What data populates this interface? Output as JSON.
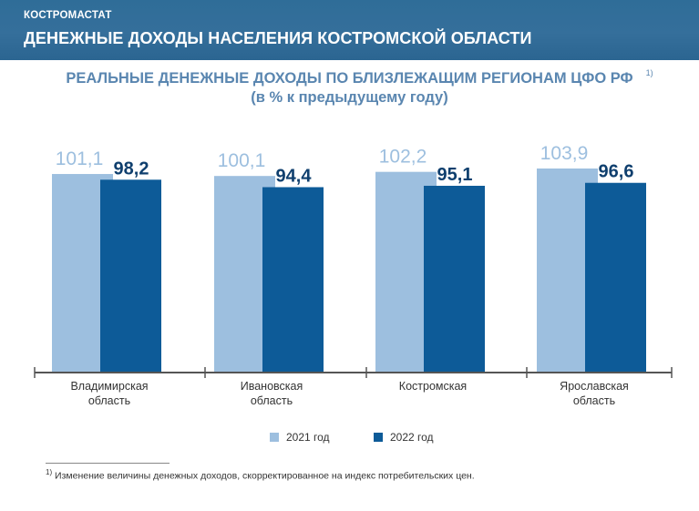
{
  "header": {
    "org": "КОСТРОМАСТАТ",
    "title": "ДЕНЕЖНЫЕ ДОХОДЫ НАСЕЛЕНИЯ КОСТРОМСКОЙ ОБЛАСТИ"
  },
  "colors": {
    "header_bg": "#2f6d98",
    "series_2021": "#9dbfdf",
    "series_2022": "#0d5b98",
    "label_2021": "#9dbfdf",
    "label_2022": "#0f3f6e",
    "subtitle": "#5a86b0"
  },
  "footnote": {
    "marker": "1)",
    "text": "Изменение величины денежных доходов, скорректированное на индекс потребительских цен."
  },
  "chart_data": {
    "type": "bar",
    "title": "РЕАЛЬНЫЕ ДЕНЕЖНЫЕ ДОХОДЫ ПО БЛИЗЛЕЖАЩИМ РЕГИОНАМ ЦФО РФ",
    "title_footnote_marker": "1)",
    "subtitle": "(в % к предыдущему году)",
    "categories": [
      [
        "Владимирская",
        "область"
      ],
      [
        "Ивановская",
        "область"
      ],
      [
        "Костромская"
      ],
      [
        "Ярославская",
        "область"
      ]
    ],
    "series": [
      {
        "name": "2021 год",
        "values": [
          101.1,
          100.1,
          102.2,
          103.9
        ],
        "labels": [
          "101,1",
          "100,1",
          "102,2",
          "103,9"
        ]
      },
      {
        "name": "2022 год",
        "values": [
          98.2,
          94.4,
          95.1,
          96.6
        ],
        "labels": [
          "98,2",
          "94,4",
          "95,1",
          "96,6"
        ]
      }
    ],
    "xlabel": "",
    "ylabel": "",
    "ylim": [
      0,
      104
    ],
    "grid": false,
    "legend_position": "bottom"
  }
}
